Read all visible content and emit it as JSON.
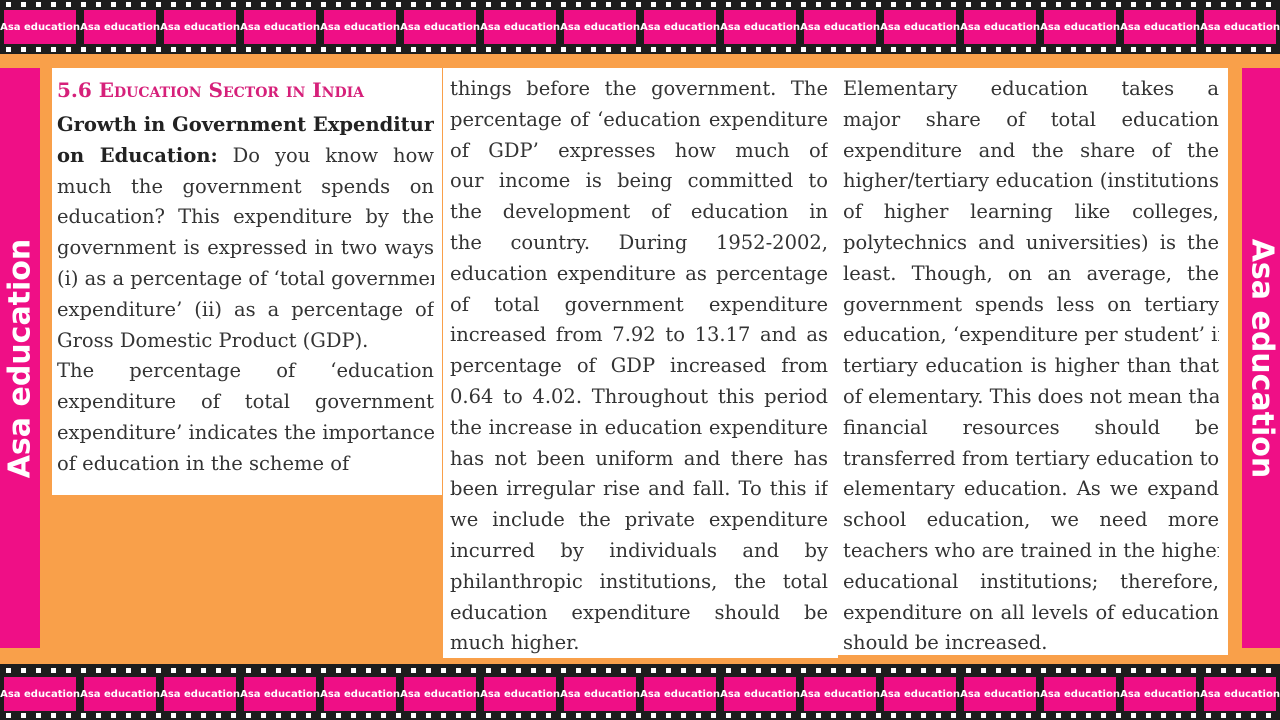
{
  "watermark": "Asa education",
  "heading": "5.6 Education Sector in India",
  "col1": {
    "bold": "Growth in Government Expenditure",
    "bold2": "on Education:",
    "lines": [
      "on Education: Do you know how",
      "much the government spends on",
      "education? This expenditure by the",
      "government is expressed in two ways",
      "(i) as a percentage of ‘total government",
      "expenditure’ (ii) as a percentage of",
      "Gross Domestic Product (GDP).",
      "    The percentage of ‘education",
      "expenditure of total government",
      "expenditure’ indicates the importance",
      "of education in the scheme of"
    ]
  },
  "col2": {
    "lines": [
      "things before the government. The",
      "percentage of ‘education expenditure",
      "of GDP’ expresses how much of",
      "our income is being committed to",
      "the development of education in",
      "the country. During 1952-2002,",
      "education expenditure as percentage",
      "of total government expenditure",
      "increased from 7.92 to 13.17 and as",
      "percentage of GDP increased from",
      "0.64 to 4.02. Throughout this period",
      "the increase in education expenditure",
      "has not been uniform and there has",
      "been irregular rise and fall. To this if",
      "we include the private expenditure",
      "incurred by individuals and by",
      "philanthropic institutions, the total",
      "education expenditure should be",
      "much higher."
    ]
  },
  "col3": {
    "lines": [
      "    Elementary education takes a",
      "major share of total education",
      "expenditure and the share of the",
      "higher/tertiary education (institutions",
      "of higher learning like colleges,",
      "polytechnics and universities) is the",
      "least. Though, on an average, the",
      "government spends less on tertiary",
      "education, ‘expenditure per student’ in",
      "tertiary education is higher than that",
      "of elementary. This does not mean that",
      "financial resources should be",
      "transferred from tertiary education to",
      "elementary education. As we expand",
      "school education, we need more",
      "teachers who are trained in the higher",
      "educational institutions; therefore,",
      "expenditure on all levels of education",
      "should be increased."
    ]
  }
}
